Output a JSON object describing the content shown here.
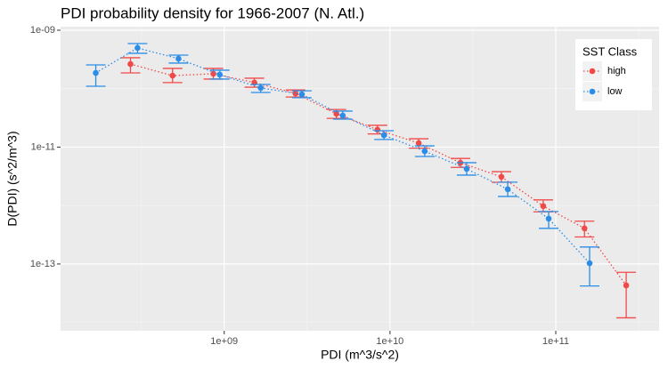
{
  "chart_data": {
    "type": "scatter",
    "title": "PDI probability density for 1966-2007 (N. Atl.)",
    "x_label": "PDI (m^3/s^2)",
    "y_label": "D(PDI) (s^2/m^3)",
    "log_x": true,
    "log_y": true,
    "grid": true,
    "legend_title": "SST Class",
    "legend_position": "top-right",
    "xlim": [
      103000000.0,
      420000000000.0
    ],
    "ylim": [
      7.2e-15,
      1.15e-09
    ],
    "xticks": [
      {
        "value": 1000000000.0,
        "label": "1e+09"
      },
      {
        "value": 10000000000.0,
        "label": "1e+10"
      },
      {
        "value": 100000000000.0,
        "label": "1e+11"
      }
    ],
    "yticks": [
      {
        "value": 1e-13,
        "label": "1e-13"
      },
      {
        "value": 1e-11,
        "label": "1e-11"
      },
      {
        "value": 1e-09,
        "label": "1e-09"
      }
    ],
    "series": [
      {
        "name": "high",
        "color": "#f04a48",
        "x": [
          272000000.0,
          488000000.0,
          860000000.0,
          1520000000.0,
          2690000000.0,
          4750000000.0,
          8400000000.0,
          14900000000.0,
          26600000000.0,
          47000000000.0,
          84000000000.0,
          149000000000.0,
          266000000000.0
        ],
        "values": [
          2.64e-10,
          1.67e-10,
          1.8e-10,
          1.27e-10,
          8.3e-11,
          3.72e-11,
          1.99e-11,
          1.17e-11,
          5.4e-12,
          3.1e-12,
          9.8e-13,
          4.07e-13,
          4.3e-14
        ],
        "lower": [
          1.86e-10,
          1.27e-10,
          1.46e-10,
          1.06e-10,
          7.2e-11,
          3.1e-11,
          1.68e-11,
          9.6e-12,
          4.5e-12,
          2.5e-12,
          7.8e-13,
          2.9e-13,
          1.2e-14
        ],
        "upper": [
          3.38e-10,
          2.22e-10,
          2.22e-10,
          1.51e-10,
          9.5e-11,
          4.4e-11,
          2.36e-11,
          1.39e-11,
          6.4e-12,
          3.8e-12,
          1.25e-12,
          5.4e-13,
          7.2e-14
        ]
      },
      {
        "name": "low",
        "color": "#2b8de8",
        "x": [
          168000000.0,
          300000000.0,
          530000000.0,
          940000000.0,
          1660000000.0,
          2940000000.0,
          5190000000.0,
          9200000000.0,
          16200000000.0,
          29000000000.0,
          51300000000.0,
          90600000000.0,
          160000000000.0
        ],
        "values": [
          1.86e-10,
          4.97e-10,
          3.26e-10,
          1.74e-10,
          1.03e-10,
          8e-11,
          3.47e-11,
          1.6e-11,
          8.5e-12,
          4.24e-12,
          1.9e-12,
          5.97e-13,
          1.03e-13
        ],
        "lower": [
          1.1e-10,
          4.03e-10,
          2.74e-10,
          1.46e-10,
          8.6e-11,
          7e-11,
          3.01e-11,
          1.35e-11,
          6.9e-12,
          3.32e-12,
          1.43e-12,
          4.07e-13,
          4.2e-14
        ],
        "upper": [
          2.55e-10,
          5.91e-10,
          3.75e-10,
          2.07e-10,
          1.18e-10,
          9.2e-11,
          4.13e-11,
          1.91e-11,
          1.05e-11,
          5.42e-12,
          2.51e-12,
          7.9e-13,
          1.95e-13
        ]
      }
    ]
  }
}
